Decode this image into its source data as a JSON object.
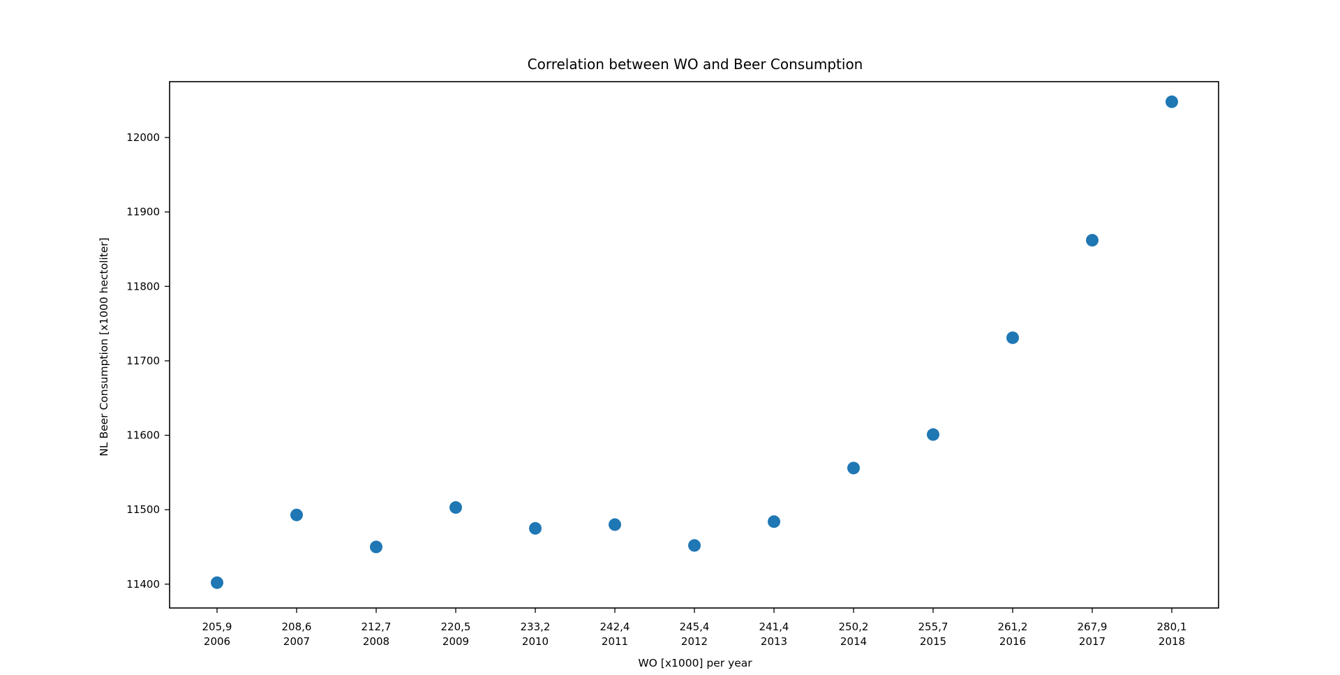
{
  "chart_data": {
    "type": "scatter",
    "title": "Correlation between WO and Beer Consumption",
    "xlabel": "WO [x1000] per year",
    "ylabel": "NL Beer Consumption [x1000 hectoliter]",
    "x_tick_labels": [
      {
        "wo": "205,9",
        "year": "2006"
      },
      {
        "wo": "208,6",
        "year": "2007"
      },
      {
        "wo": "212,7",
        "year": "2008"
      },
      {
        "wo": "220,5",
        "year": "2009"
      },
      {
        "wo": "233,2",
        "year": "2010"
      },
      {
        "wo": "242,4",
        "year": "2011"
      },
      {
        "wo": "245,4",
        "year": "2012"
      },
      {
        "wo": "241,4",
        "year": "2013"
      },
      {
        "wo": "250,2",
        "year": "2014"
      },
      {
        "wo": "255,7",
        "year": "2015"
      },
      {
        "wo": "261,2",
        "year": "2016"
      },
      {
        "wo": "267,9",
        "year": "2017"
      },
      {
        "wo": "280,1",
        "year": "2018"
      }
    ],
    "y_ticks": [
      11400,
      11500,
      11600,
      11700,
      11800,
      11900,
      12000
    ],
    "ylim": [
      11368,
      12075
    ],
    "series": [
      {
        "color": "#1f77b4",
        "values": [
          11402,
          11493,
          11450,
          11503,
          11475,
          11480,
          11452,
          11484,
          11556,
          11601,
          11731,
          11862,
          12048
        ]
      }
    ],
    "grid": false,
    "legend": "none"
  }
}
